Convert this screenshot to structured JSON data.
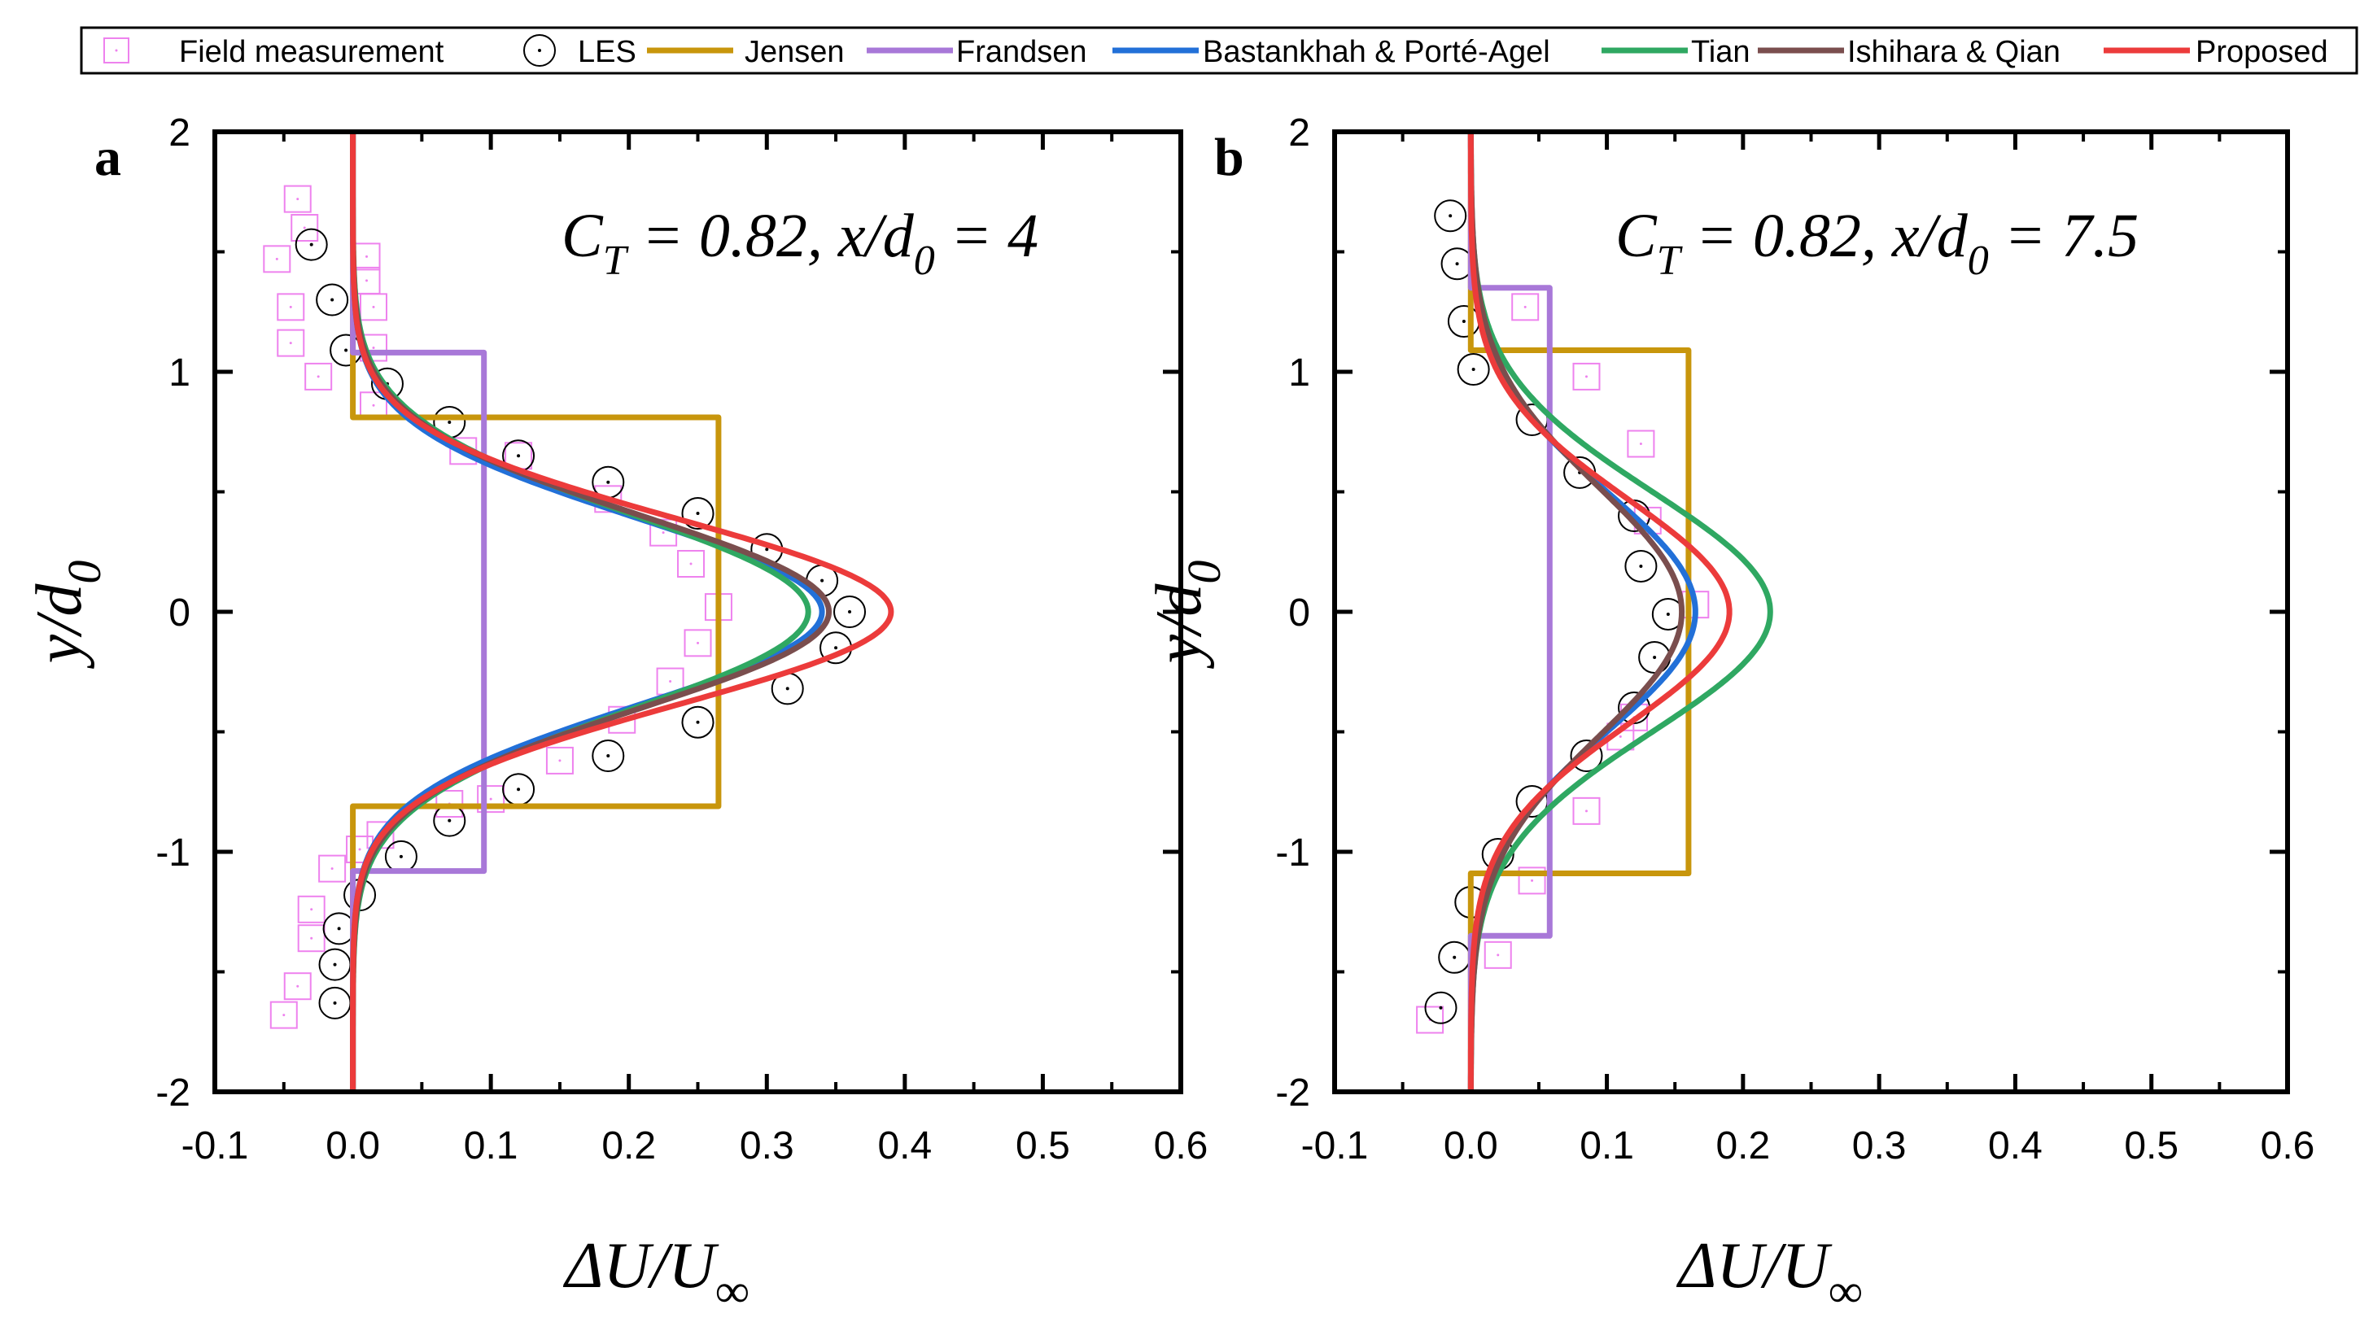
{
  "legend": {
    "items": [
      {
        "label": "Field measurement",
        "kind": "square",
        "color": "#ee82ee"
      },
      {
        "label": "LES",
        "kind": "circle",
        "color": "#000000"
      },
      {
        "label": "Jensen",
        "kind": "line",
        "color": "#c8960c"
      },
      {
        "label": "Frandsen",
        "kind": "line",
        "color": "#a878d8"
      },
      {
        "label": "Bastankhah & Porté-Agel",
        "kind": "line",
        "color": "#2270d8"
      },
      {
        "label": "Tian",
        "kind": "line",
        "color": "#2fa862"
      },
      {
        "label": "Ishihara & Qian",
        "kind": "line",
        "color": "#7a4e4e"
      },
      {
        "label": "Proposed",
        "kind": "line",
        "color": "#ec3b3b"
      }
    ]
  },
  "chart_data": [
    {
      "type": "line",
      "panel": "a",
      "annotation": {
        "ct_symbol": "C",
        "ct_sub": "T",
        "ct_value": " = 0.82, ",
        "xd_symbol": "x/d",
        "xd_sub": "0",
        "xd_value": " = 4"
      },
      "xlabel": {
        "main": "ΔU/U",
        "sub": "∞"
      },
      "ylabel": {
        "main": "y/d",
        "sub": "0"
      },
      "xlim": [
        -0.1,
        0.6
      ],
      "ylim": [
        -2,
        2
      ],
      "xticks": [
        "-0.1",
        "0.0",
        "0.1",
        "0.2",
        "0.3",
        "0.4",
        "0.5",
        "0.6"
      ],
      "yticks": [
        "-2",
        "-1",
        "0",
        "1",
        "2"
      ],
      "field": [
        [
          -0.04,
          1.72
        ],
        [
          -0.035,
          1.6
        ],
        [
          -0.055,
          1.47
        ],
        [
          -0.045,
          1.27
        ],
        [
          -0.045,
          1.12
        ],
        [
          -0.025,
          0.98
        ],
        [
          0.01,
          1.48
        ],
        [
          0.01,
          1.38
        ],
        [
          0.015,
          1.27
        ],
        [
          0.015,
          1.1
        ],
        [
          0.015,
          0.86
        ],
        [
          0.08,
          0.67
        ],
        [
          0.12,
          0.65
        ],
        [
          0.185,
          0.47
        ],
        [
          0.225,
          0.33
        ],
        [
          0.245,
          0.2
        ],
        [
          0.265,
          0.02
        ],
        [
          0.25,
          -0.13
        ],
        [
          0.23,
          -0.29
        ],
        [
          0.195,
          -0.45
        ],
        [
          0.15,
          -0.62
        ],
        [
          0.1,
          -0.78
        ],
        [
          0.07,
          -0.8
        ],
        [
          0.02,
          -0.93
        ],
        [
          0.005,
          -0.99
        ],
        [
          -0.015,
          -1.07
        ],
        [
          -0.03,
          -1.24
        ],
        [
          -0.03,
          -1.36
        ],
        [
          -0.04,
          -1.56
        ],
        [
          -0.05,
          -1.68
        ]
      ],
      "les": [
        [
          -0.03,
          1.53
        ],
        [
          -0.015,
          1.3
        ],
        [
          -0.005,
          1.09
        ],
        [
          0.025,
          0.95
        ],
        [
          0.07,
          0.79
        ],
        [
          0.12,
          0.65
        ],
        [
          0.185,
          0.54
        ],
        [
          0.25,
          0.41
        ],
        [
          0.3,
          0.26
        ],
        [
          0.34,
          0.13
        ],
        [
          0.36,
          0.0
        ],
        [
          0.35,
          -0.15
        ],
        [
          0.315,
          -0.32
        ],
        [
          0.25,
          -0.46
        ],
        [
          0.185,
          -0.6
        ],
        [
          0.12,
          -0.74
        ],
        [
          0.07,
          -0.87
        ],
        [
          0.035,
          -1.02
        ],
        [
          0.005,
          -1.18
        ],
        [
          -0.01,
          -1.32
        ],
        [
          -0.013,
          -1.47
        ],
        [
          -0.013,
          -1.63
        ]
      ],
      "models": {
        "Jensen": {
          "type": "tophat",
          "amp": 0.265,
          "halfwidth": 0.81
        },
        "Frandsen": {
          "type": "tophat",
          "amp": 0.095,
          "halfwidth": 1.08
        },
        "Bastankhah & Porté-Agel": {
          "type": "gauss",
          "amp": 0.34,
          "sigma": 0.39
        },
        "Tian": {
          "type": "gauss",
          "amp": 0.33,
          "sigma": 0.41
        },
        "Ishihara & Qian": {
          "type": "gauss",
          "amp": 0.345,
          "sigma": 0.4
        },
        "Proposed": {
          "type": "gauss",
          "amp": 0.39,
          "sigma": 0.385
        }
      }
    },
    {
      "type": "line",
      "panel": "b",
      "annotation": {
        "ct_symbol": "C",
        "ct_sub": "T",
        "ct_value": " = 0.82, ",
        "xd_symbol": "x/d",
        "xd_sub": "0",
        "xd_value": " = 7.5"
      },
      "xlabel": {
        "main": "ΔU/U",
        "sub": "∞"
      },
      "ylabel": {
        "main": "y/d",
        "sub": "0"
      },
      "xlim": [
        -0.1,
        0.6
      ],
      "ylim": [
        -2,
        2
      ],
      "xticks": [
        "-0.1",
        "0.0",
        "0.1",
        "0.2",
        "0.3",
        "0.4",
        "0.5",
        "0.6"
      ],
      "yticks": [
        "-2",
        "-1",
        "0",
        "1",
        "2"
      ],
      "field": [
        [
          0.04,
          1.27
        ],
        [
          0.085,
          0.98
        ],
        [
          0.125,
          0.7
        ],
        [
          0.13,
          0.38
        ],
        [
          0.165,
          0.03
        ],
        [
          0.12,
          -0.44
        ],
        [
          0.11,
          -0.52
        ],
        [
          0.085,
          -0.83
        ],
        [
          0.045,
          -1.12
        ],
        [
          0.02,
          -1.43
        ],
        [
          -0.03,
          -1.7
        ]
      ],
      "les": [
        [
          -0.015,
          1.65
        ],
        [
          -0.01,
          1.45
        ],
        [
          -0.005,
          1.21
        ],
        [
          0.002,
          1.01
        ],
        [
          0.045,
          0.8
        ],
        [
          0.08,
          0.58
        ],
        [
          0.12,
          0.4
        ],
        [
          0.125,
          0.19
        ],
        [
          0.145,
          -0.01
        ],
        [
          0.135,
          -0.19
        ],
        [
          0.12,
          -0.4
        ],
        [
          0.085,
          -0.6
        ],
        [
          0.045,
          -0.79
        ],
        [
          0.02,
          -1.01
        ],
        [
          0.0,
          -1.21
        ],
        [
          -0.012,
          -1.44
        ],
        [
          -0.022,
          -1.65
        ]
      ],
      "models": {
        "Jensen": {
          "type": "tophat",
          "amp": 0.16,
          "halfwidth": 1.09
        },
        "Frandsen": {
          "type": "tophat",
          "amp": 0.058,
          "halfwidth": 1.35
        },
        "Bastankhah & Porté-Agel": {
          "type": "gauss",
          "amp": 0.165,
          "sigma": 0.5
        },
        "Tian": {
          "type": "gauss",
          "amp": 0.22,
          "sigma": 0.5
        },
        "Ishihara & Qian": {
          "type": "gauss",
          "amp": 0.155,
          "sigma": 0.52
        },
        "Proposed": {
          "type": "gauss",
          "amp": 0.19,
          "sigma": 0.47
        }
      }
    }
  ]
}
